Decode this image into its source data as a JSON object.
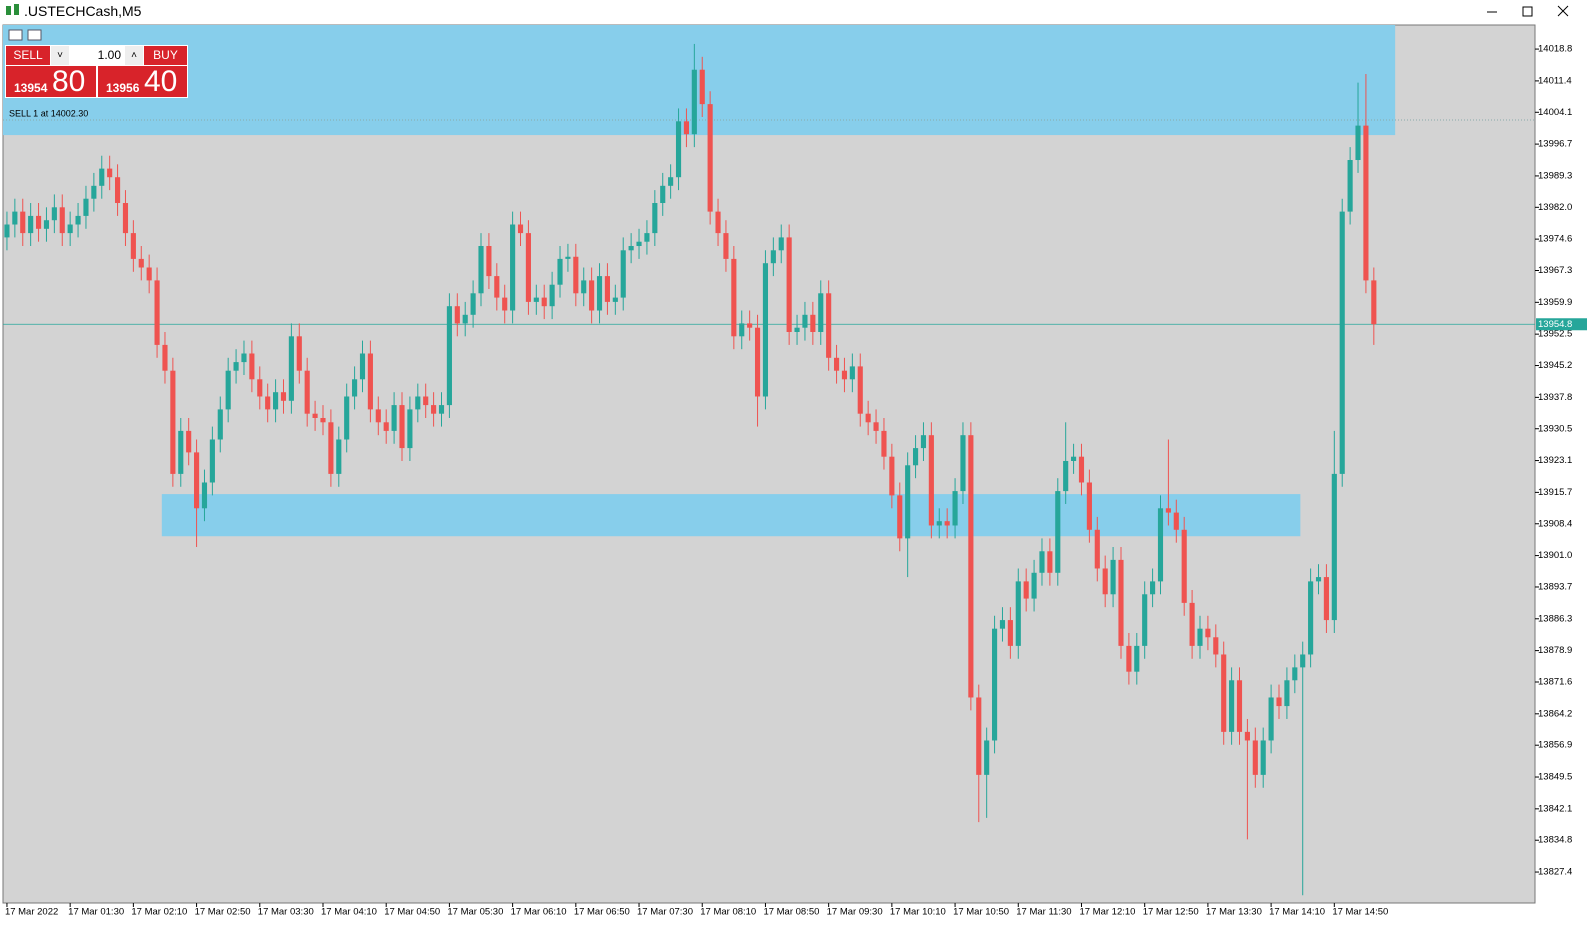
{
  "window": {
    "title": ".USTECHCash,M5"
  },
  "trade_panel": {
    "sell": "SELL",
    "buy": "BUY",
    "lots": "1.00",
    "bid_big": "13954",
    "bid_small": "80",
    "ask_big": "13956",
    "ask_small": "40"
  },
  "chart_data": {
    "type": "candlestick",
    "up_color": "#26a69a",
    "down_color": "#ef5350",
    "zone_color": "#87ceeb",
    "open": [
      13975,
      13978,
      13981,
      13976,
      13980,
      13977,
      13979,
      13982,
      13976,
      13978,
      13980,
      13984,
      13987,
      13991,
      13989,
      13983,
      13976,
      13970,
      13968,
      13965,
      13950,
      13944,
      13920,
      13930,
      13925,
      13912,
      13918,
      13928,
      13935,
      13944,
      13946,
      13948,
      13942,
      13938,
      13935,
      13939,
      13937,
      13952,
      13944,
      13934,
      13933,
      13932,
      13920,
      13928,
      13938,
      13942,
      13948,
      13935,
      13932,
      13930,
      13936,
      13926,
      13935,
      13938,
      13936,
      13934,
      13936,
      13959,
      13955,
      13957,
      13962,
      13973,
      13966,
      13961,
      13958,
      13978,
      13976,
      13960,
      13961,
      13959,
      13964,
      13970,
      13970.5,
      13962,
      13965,
      13958,
      13966,
      13960,
      13961,
      13972,
      13973,
      13974,
      13976,
      13983,
      13987,
      13989,
      14002,
      13999,
      14014,
      14006,
      13981,
      13976,
      13970,
      13952,
      13955,
      13954,
      13938,
      13969,
      13972,
      13975,
      13953,
      13954,
      13957,
      13953,
      13962,
      13947,
      13944,
      13942,
      13945,
      13934,
      13932,
      13930,
      13924,
      13915,
      13905,
      13922,
      13926,
      13929,
      13908,
      13909,
      13908,
      13916,
      13929,
      13868,
      13850,
      13858,
      13884,
      13886,
      13880,
      13895,
      13891,
      13897,
      13902,
      13897,
      13916,
      13923,
      13924,
      13918,
      13907,
      13898,
      13892,
      13900,
      13880,
      13874,
      13880,
      13892,
      13895,
      13912,
      13911,
      13907,
      13890,
      13880,
      13884,
      13882,
      13878,
      13860,
      13872,
      13860,
      13858,
      13850,
      13858,
      13868,
      13866,
      13872,
      13875,
      13878,
      13895,
      13896,
      13886,
      13920,
      13981,
      13993,
      14001,
      13965
    ],
    "high": [
      13981,
      13984,
      13984,
      13983,
      13983,
      13982,
      13985,
      13985,
      13981,
      13983,
      13987,
      13990,
      13994,
      13994,
      13992,
      13986,
      13979,
      13973,
      13971,
      13968,
      13953,
      13947,
      13933,
      13933,
      13928,
      13921,
      13931,
      13938,
      13947,
      13949,
      13951,
      13951,
      13945,
      13941,
      13942,
      13942,
      13955,
      13955,
      13947,
      13937,
      13936,
      13935,
      13931,
      13941,
      13945,
      13951,
      13951,
      13938,
      13935,
      13939,
      13939,
      13938,
      13941,
      13941,
      13939,
      13939,
      13962,
      13962,
      13960,
      13965,
      13976,
      13976,
      13969,
      13964,
      13981,
      13981,
      13979,
      13964,
      13964,
      13967,
      13973,
      13973.5,
      13973.5,
      13968,
      13968,
      13969,
      13969,
      13964,
      13975,
      13976,
      13977,
      13979,
      13986,
      13990,
      13992,
      14005,
      14005,
      14020,
      14017,
      14009,
      13984,
      13979,
      13973,
      13958,
      13958,
      13957,
      13972,
      13975,
      13978,
      13978,
      13957,
      13960,
      13960,
      13965,
      13965,
      13950,
      13947,
      13948,
      13948,
      13937,
      13935,
      13933,
      13927,
      13918,
      13925,
      13929,
      13932,
      13932,
      13912,
      13912,
      13919,
      13932,
      13932,
      13871,
      13861,
      13887,
      13889,
      13889,
      13898,
      13898,
      13900,
      13905,
      13905,
      13919,
      13932,
      13927,
      13927,
      13921,
      13910,
      13901,
      13903,
      13903,
      13883,
      13883,
      13895,
      13898,
      13915,
      13928,
      13914,
      13910,
      13893,
      13887,
      13887,
      13885,
      13881,
      13875,
      13875,
      13863,
      13861,
      13861,
      13871,
      13871,
      13875,
      13878,
      13881,
      13898,
      13899,
      13899,
      13930,
      13984,
      13996,
      14011,
      14013,
      13968
    ],
    "low": [
      13972,
      13975,
      13973,
      13973,
      13974,
      13974,
      13976,
      13973,
      13973,
      13975,
      13977,
      13981,
      13984,
      13986,
      13980,
      13973,
      13967,
      13965,
      13962,
      13947,
      13941,
      13917,
      13917,
      13922,
      13903,
      13909,
      13915,
      13925,
      13932,
      13941,
      13943,
      13939,
      13935,
      13932,
      13932,
      13934,
      13934,
      13941,
      13931,
      13930,
      13929,
      13917,
      13917,
      13925,
      13935,
      13939,
      13932,
      13929,
      13927,
      13927,
      13923,
      13923,
      13932,
      13933,
      13931,
      13931,
      13933,
      13952,
      13952,
      13954,
      13959,
      13963,
      13958,
      13955,
      13955,
      13973,
      13957,
      13957,
      13956,
      13956,
      13961,
      13967,
      13959,
      13959,
      13955,
      13955,
      13957,
      13957,
      13958,
      13969,
      13970,
      13971,
      13973,
      13980,
      13984,
      13986,
      13996,
      13996,
      14003,
      13978,
      13973,
      13967,
      13949,
      13949,
      13951,
      13931,
      13935,
      13966,
      13969,
      13950,
      13950,
      13951,
      13950,
      13950,
      13944,
      13941,
      13939,
      13939,
      13931,
      13929,
      13927,
      13921,
      13912,
      13902,
      13896,
      13919,
      13923,
      13905,
      13905,
      13905,
      13905,
      13913,
      13865,
      13839,
      13840,
      13855,
      13881,
      13877,
      13877,
      13888,
      13888,
      13894,
      13894,
      13894,
      13913,
      13920,
      13915,
      13904,
      13895,
      13889,
      13889,
      13877,
      13871,
      13871,
      13877,
      13889,
      13892,
      13908,
      13904,
      13887,
      13877,
      13877,
      13879,
      13875,
      13857,
      13857,
      13857,
      13835,
      13847,
      13847,
      13855,
      13863,
      13863,
      13869,
      13822,
      13875,
      13892,
      13883,
      13883,
      13917,
      13978,
      13990,
      13962,
      13950
    ],
    "close": [
      13978,
      13981,
      13976,
      13980,
      13977,
      13979,
      13982,
      13976,
      13978,
      13980,
      13984,
      13987,
      13991,
      13989,
      13983,
      13976,
      13970,
      13968,
      13965,
      13950,
      13944,
      13920,
      13930,
      13925,
      13912,
      13918,
      13928,
      13935,
      13944,
      13946,
      13948,
      13942,
      13938,
      13935,
      13939,
      13937,
      13952,
      13944,
      13934,
      13933,
      13932,
      13920,
      13928,
      13938,
      13942,
      13948,
      13935,
      13932,
      13930,
      13936,
      13926,
      13935,
      13938,
      13936,
      13934,
      13936,
      13959,
      13955,
      13957,
      13962,
      13973,
      13966,
      13961,
      13958,
      13978,
      13976,
      13960,
      13961,
      13959,
      13964,
      13970,
      13970.5,
      13962,
      13965,
      13958,
      13966,
      13960,
      13961,
      13972,
      13973,
      13974,
      13976,
      13983,
      13987,
      13989,
      14002,
      13999,
      14014,
      14006,
      13981,
      13976,
      13970,
      13952,
      13955,
      13954,
      13938,
      13969,
      13972,
      13975,
      13953,
      13954,
      13957,
      13953,
      13962,
      13947,
      13944,
      13942,
      13945,
      13934,
      13932,
      13930,
      13924,
      13915,
      13905,
      13922,
      13926,
      13929,
      13908,
      13909,
      13908,
      13916,
      13929,
      13868,
      13850,
      13858,
      13884,
      13886,
      13880,
      13895,
      13891,
      13897,
      13902,
      13897,
      13916,
      13923,
      13924,
      13918,
      13907,
      13898,
      13892,
      13900,
      13880,
      13874,
      13880,
      13892,
      13895,
      13912,
      13911,
      13907,
      13890,
      13880,
      13884,
      13882,
      13878,
      13860,
      13872,
      13860,
      13858,
      13850,
      13858,
      13868,
      13866,
      13872,
      13875,
      13878,
      13895,
      13896,
      13886,
      13920,
      13981,
      13993,
      14001,
      13965,
      13954.8
    ],
    "xlim": [
      -0.5,
      193.4
    ],
    "ylim": [
      13820.2,
      14024.4
    ],
    "xticks": [
      {
        "value": 0,
        "label": "17 Mar 2022"
      },
      {
        "value": 8,
        "label": "17 Mar 01:30"
      },
      {
        "value": 16,
        "label": "17 Mar 02:10"
      },
      {
        "value": 24,
        "label": "17 Mar 02:50"
      },
      {
        "value": 32,
        "label": "17 Mar 03:30"
      },
      {
        "value": 40,
        "label": "17 Mar 04:10"
      },
      {
        "value": 48,
        "label": "17 Mar 04:50"
      },
      {
        "value": 56,
        "label": "17 Mar 05:30"
      },
      {
        "value": 64,
        "label": "17 Mar 06:10"
      },
      {
        "value": 72,
        "label": "17 Mar 06:50"
      },
      {
        "value": 80,
        "label": "17 Mar 07:30"
      },
      {
        "value": 88,
        "label": "17 Mar 08:10"
      },
      {
        "value": 96,
        "label": "17 Mar 08:50"
      },
      {
        "value": 104,
        "label": "17 Mar 09:30"
      },
      {
        "value": 112,
        "label": "17 Mar 10:10"
      },
      {
        "value": 120,
        "label": "17 Mar 10:50"
      },
      {
        "value": 128,
        "label": "17 Mar 11:30"
      },
      {
        "value": 136,
        "label": "17 Mar 12:10"
      },
      {
        "value": 144,
        "label": "17 Mar 12:50"
      },
      {
        "value": 152,
        "label": "17 Mar 13:30"
      },
      {
        "value": 160,
        "label": "17 Mar 14:10"
      },
      {
        "value": 168,
        "label": "17 Mar 14:50"
      }
    ],
    "yticks": [
      14018.8,
      14011.4,
      14004.1,
      13996.7,
      13989.3,
      {
        "value": 13982,
        "label": "13982.0"
      },
      13974.6,
      13967.3,
      13959.9,
      13952.5,
      13945.2,
      13937.8,
      13930.5,
      13923.1,
      13915.7,
      13908.4,
      {
        "value": 13901,
        "label": "13901.0"
      },
      13893.7,
      13886.3,
      13878.9,
      13871.6,
      13864.2,
      13856.9,
      13849.5,
      13842.1,
      13834.8,
      13827.4
    ],
    "zones": [
      {
        "top": 14025,
        "bottom": 13998.8,
        "x0": -0.5,
        "x1": 175.7
      },
      {
        "top": 13915.3,
        "bottom": 13905.5,
        "x0": 19.6,
        "x1": 163.7
      }
    ],
    "bid_line": 13954.8,
    "order_price": 14002.3,
    "order_label": "SELL 1 at 14002.30"
  }
}
